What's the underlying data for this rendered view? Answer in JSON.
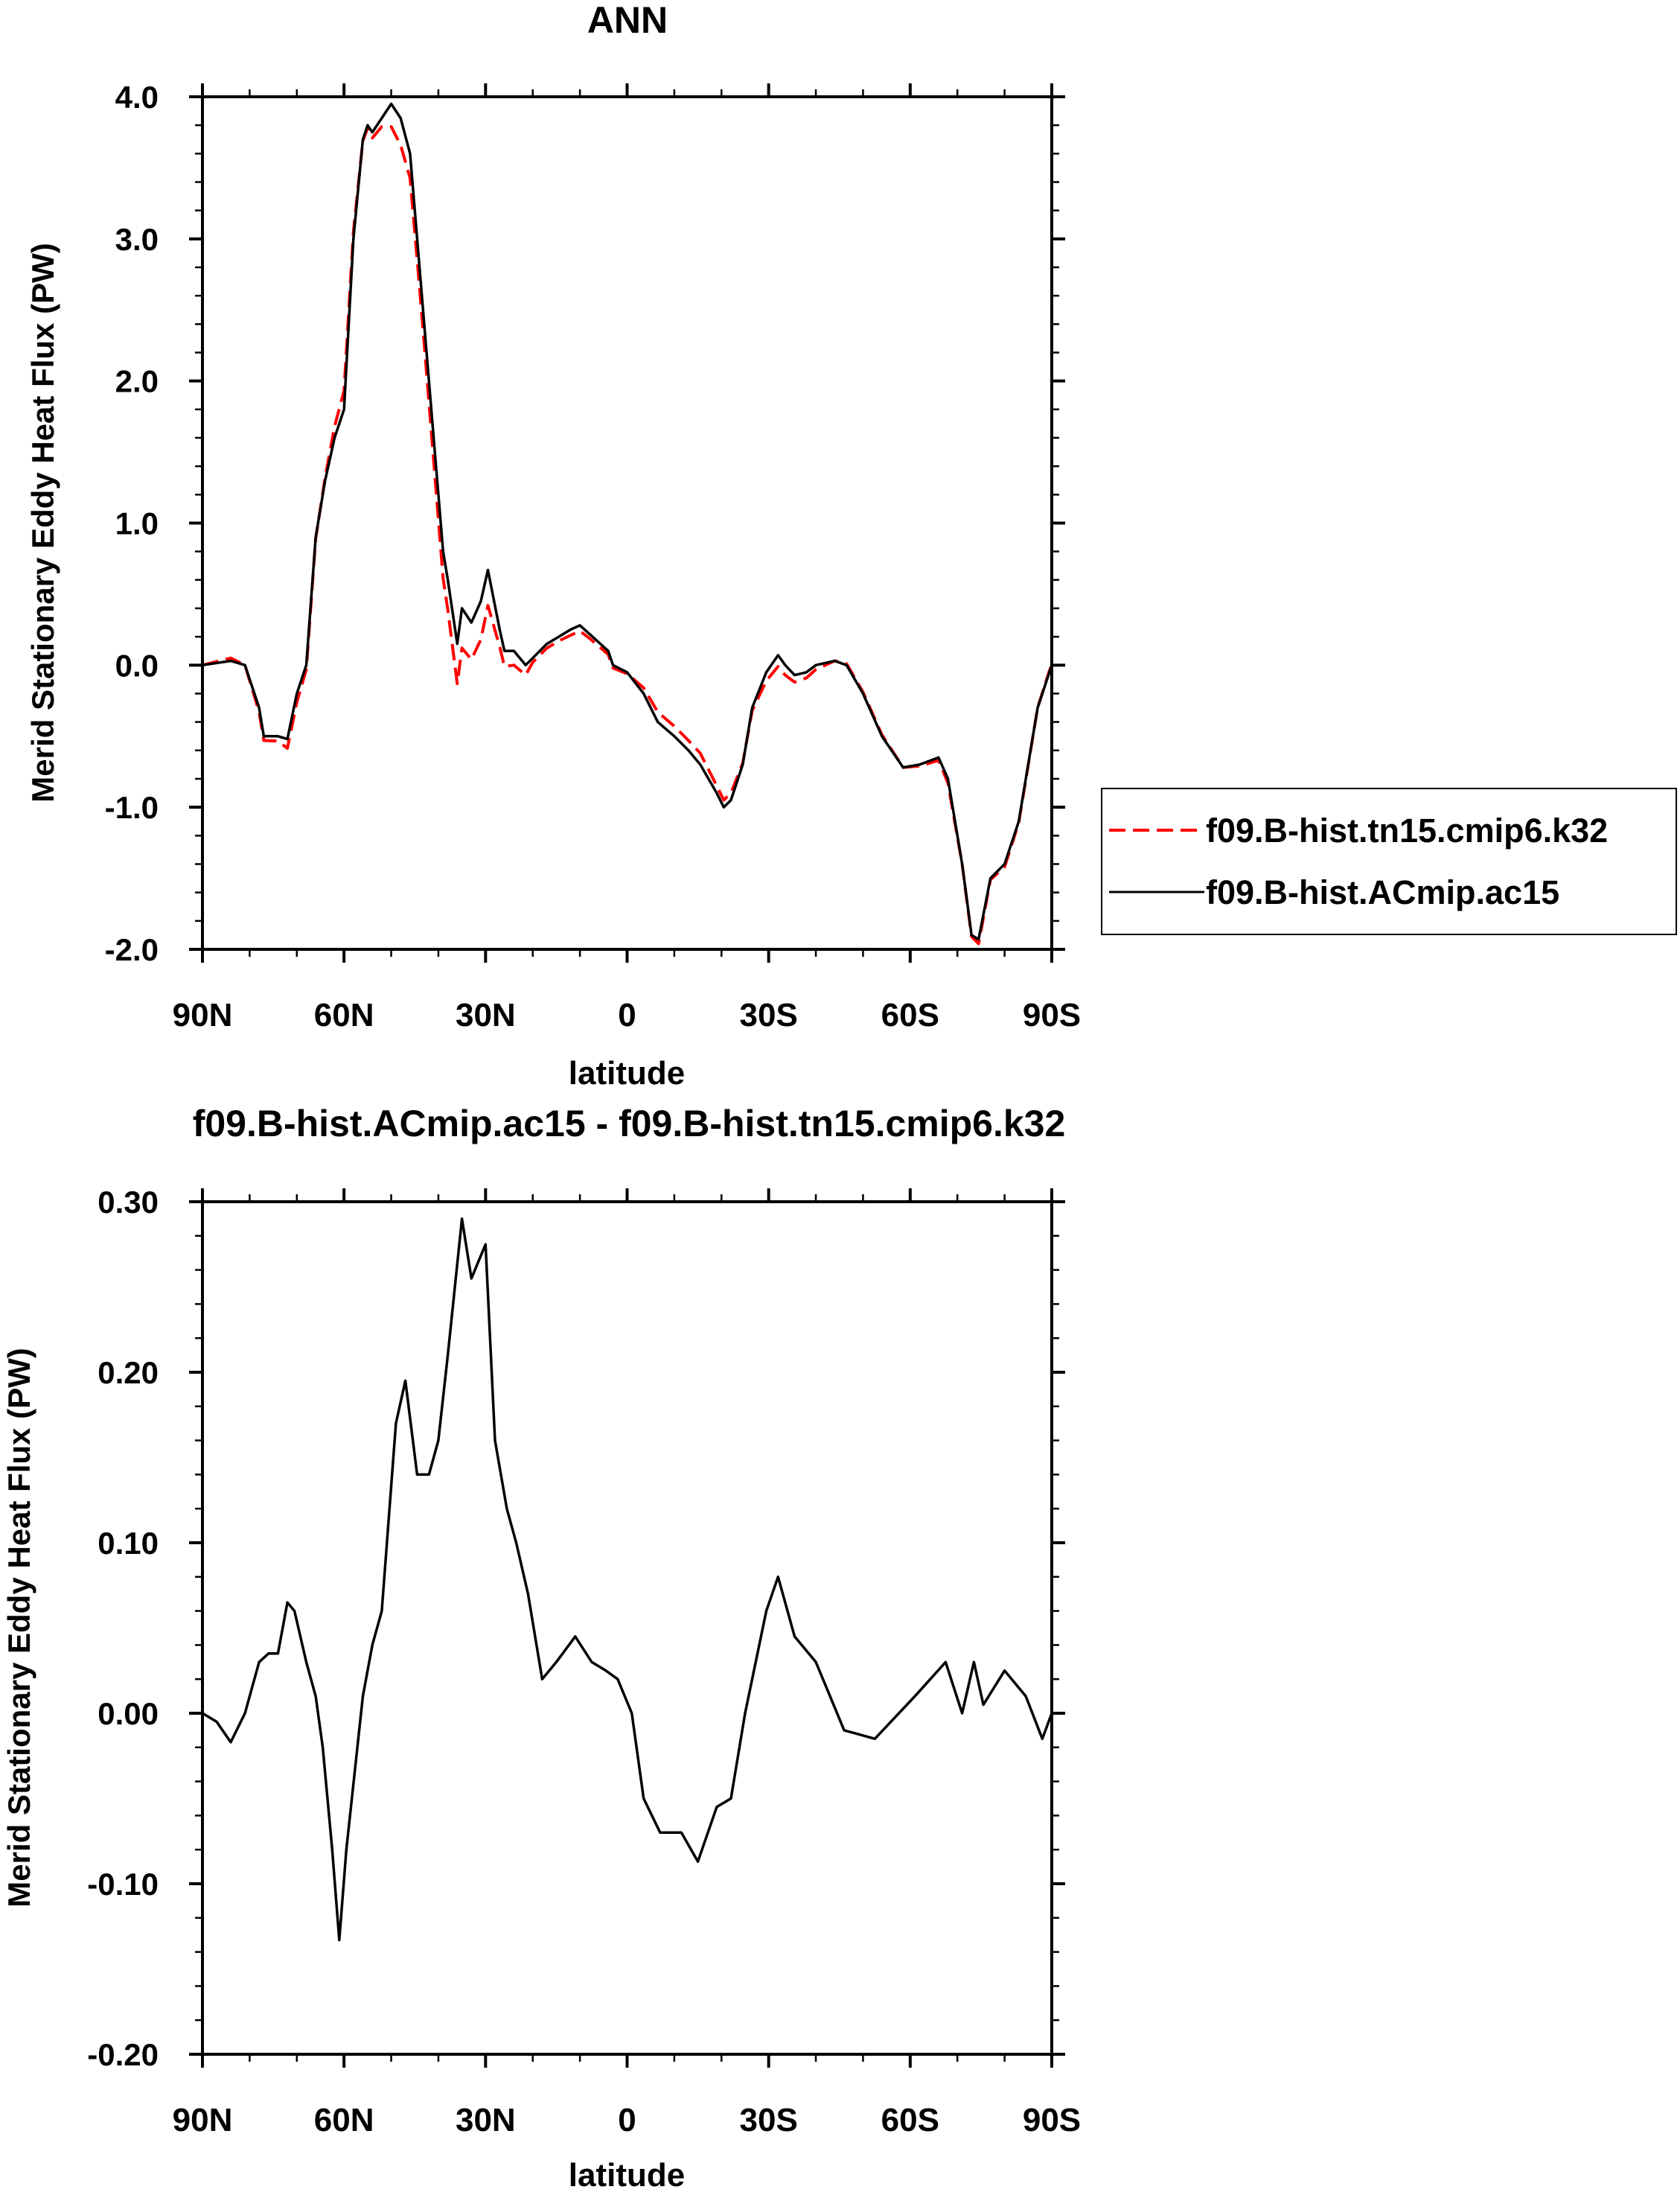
{
  "colors": {
    "control": "#ff0000",
    "test": "#000000"
  },
  "chart_data": [
    {
      "type": "line",
      "title": "ANN",
      "xlabel": "latitude",
      "ylabel": "Merid Stationary Eddy Heat Flux (PW)",
      "xlim": [
        90,
        -90
      ],
      "ylim": [
        -2.0,
        4.0
      ],
      "xticks": [
        90,
        60,
        30,
        0,
        -30,
        -60,
        -90
      ],
      "xtick_labels": [
        "90N",
        "60N",
        "30N",
        "0",
        "30S",
        "60S",
        "90S"
      ],
      "yticks": [
        -2.0,
        -1.0,
        0.0,
        1.0,
        2.0,
        3.0,
        4.0
      ],
      "ytick_labels": [
        "-2.0",
        "-1.0",
        "0.0",
        "1.0",
        "2.0",
        "3.0",
        "4.0"
      ],
      "legend_position": "right",
      "x": [
        90,
        84,
        81,
        78,
        77,
        74,
        72,
        70,
        68,
        66,
        64,
        62,
        60,
        58,
        56,
        55,
        54,
        52,
        50,
        48,
        46,
        44,
        43,
        41,
        39,
        38,
        36,
        35,
        33,
        31,
        29.5,
        27,
        26,
        24,
        21.5,
        20,
        17,
        14.5,
        12,
        10,
        8,
        4,
        3,
        0,
        -3.5,
        -6.5,
        -10,
        -13,
        -15.5,
        -19,
        -20.5,
        -22,
        -24.5,
        -26.5,
        -29.5,
        -32,
        -33.5,
        -35.5,
        -38,
        -40,
        -44,
        -46.5,
        -50,
        -54,
        -58.5,
        -62,
        -66,
        -68,
        -71,
        -73,
        -74.5,
        -77,
        -80,
        -83,
        -87,
        -89.5,
        -90
      ],
      "series": [
        {
          "name": "f09.B-hist.tn15.cmip6.k32",
          "style": "dashed",
          "color": "#ff0000",
          "values": [
            0,
            0.05,
            0,
            -0.33,
            -0.53,
            -0.535,
            -0.585,
            -0.26,
            -0.03,
            0.89,
            1.32,
            1.68,
            1.93,
            3.05,
            3.69,
            3.78,
            3.71,
            3.79,
            3.79,
            3.66,
            3.43,
            2.66,
            2.26,
            1.44,
            0.61,
            0.39,
            -0.13,
            0.12,
            0.04,
            0.18,
            0.42,
            0.13,
            -0.01,
            0.0,
            -0.07,
            0.02,
            0.12,
            0.17,
            0.21,
            0.24,
            0.19,
            0.075,
            -0.02,
            -0.06,
            -0.16,
            -0.33,
            -0.43,
            -0.53,
            -0.62,
            -0.85,
            -0.95,
            -0.9,
            -0.69,
            -0.32,
            -0.11,
            -0.01,
            -0.07,
            -0.12,
            -0.09,
            -0.03,
            0.03,
            0.01,
            -0.19,
            -0.49,
            -0.72,
            -0.71,
            -0.67,
            -0.83,
            -1.4,
            -1.91,
            -1.96,
            -1.51,
            -1.42,
            -1.11,
            -0.3,
            -0.04,
            0
          ]
        },
        {
          "name": "f09.B-hist.ACmip.ac15",
          "style": "solid",
          "color": "#000000",
          "values": [
            0,
            0.03,
            0,
            -0.3,
            -0.5,
            -0.5,
            -0.52,
            -0.2,
            0,
            0.9,
            1.3,
            1.6,
            1.8,
            3.0,
            3.7,
            3.8,
            3.75,
            3.85,
            3.95,
            3.85,
            3.6,
            2.8,
            2.4,
            1.6,
            0.8,
            0.6,
            0.15,
            0.4,
            0.3,
            0.45,
            0.67,
            0.25,
            0.1,
            0.1,
            0,
            0.05,
            0.15,
            0.2,
            0.25,
            0.28,
            0.22,
            0.1,
            0,
            -0.05,
            -0.2,
            -0.4,
            -0.5,
            -0.6,
            -0.7,
            -0.9,
            -1.0,
            -0.95,
            -0.7,
            -0.3,
            -0.05,
            0.07,
            0,
            -0.07,
            -0.05,
            0,
            0.03,
            0,
            -0.2,
            -0.5,
            -0.72,
            -0.7,
            -0.65,
            -0.8,
            -1.4,
            -1.9,
            -1.93,
            -1.5,
            -1.4,
            -1.1,
            -0.3,
            -0.05,
            0
          ]
        }
      ]
    },
    {
      "type": "line",
      "title": "f09.B-hist.ACmip.ac15 - f09.B-hist.tn15.cmip6.k32",
      "xlabel": "latitude",
      "ylabel": "Merid Stationary Eddy Heat Flux (PW)",
      "xlim": [
        90,
        -90
      ],
      "ylim": [
        -0.2,
        0.3
      ],
      "xticks": [
        90,
        60,
        30,
        0,
        -30,
        -60,
        -90
      ],
      "xtick_labels": [
        "90N",
        "60N",
        "30N",
        "0",
        "30S",
        "60S",
        "90S"
      ],
      "yticks": [
        -0.2,
        -0.1,
        0.0,
        0.1,
        0.2,
        0.3
      ],
      "ytick_labels": [
        "-0.20",
        "-0.10",
        "0.00",
        "0.10",
        "0.20",
        "0.30"
      ],
      "x": [
        90,
        87,
        84,
        81,
        78,
        76,
        74,
        72,
        70.5,
        68,
        66,
        64.5,
        62.5,
        61,
        59.5,
        56,
        54,
        52,
        49,
        47,
        44.5,
        42,
        40,
        38,
        35,
        33,
        30,
        28,
        25.5,
        23.5,
        21,
        18,
        15,
        11,
        7.5,
        4.5,
        2,
        -1,
        -3.5,
        -7,
        -11.5,
        -15,
        -19,
        -22,
        -25,
        -29.5,
        -32,
        -35.5,
        -40,
        -46,
        -52.5,
        -61,
        -67.5,
        -71,
        -73.5,
        -75.5,
        -80,
        -84.5,
        -88,
        -90
      ],
      "series": [
        {
          "name": "difference",
          "style": "solid",
          "color": "#000000",
          "values": [
            0,
            -0.005,
            -0.017,
            0,
            0.03,
            0.035,
            0.035,
            0.065,
            0.06,
            0.03,
            0.01,
            -0.02,
            -0.08,
            -0.133,
            -0.08,
            0.01,
            0.04,
            0.06,
            0.17,
            0.195,
            0.14,
            0.14,
            0.16,
            0.21,
            0.29,
            0.255,
            0.275,
            0.16,
            0.12,
            0.1,
            0.07,
            0.02,
            0.03,
            0.045,
            0.03,
            0.025,
            0.02,
            0,
            -0.05,
            -0.07,
            -0.07,
            -0.087,
            -0.055,
            -0.05,
            0,
            0.06,
            0.08,
            0.045,
            0.03,
            -0.01,
            -0.015,
            0.01,
            0.03,
            0,
            0.03,
            0.005,
            0.025,
            0.01,
            -0.015,
            0
          ]
        }
      ]
    }
  ]
}
